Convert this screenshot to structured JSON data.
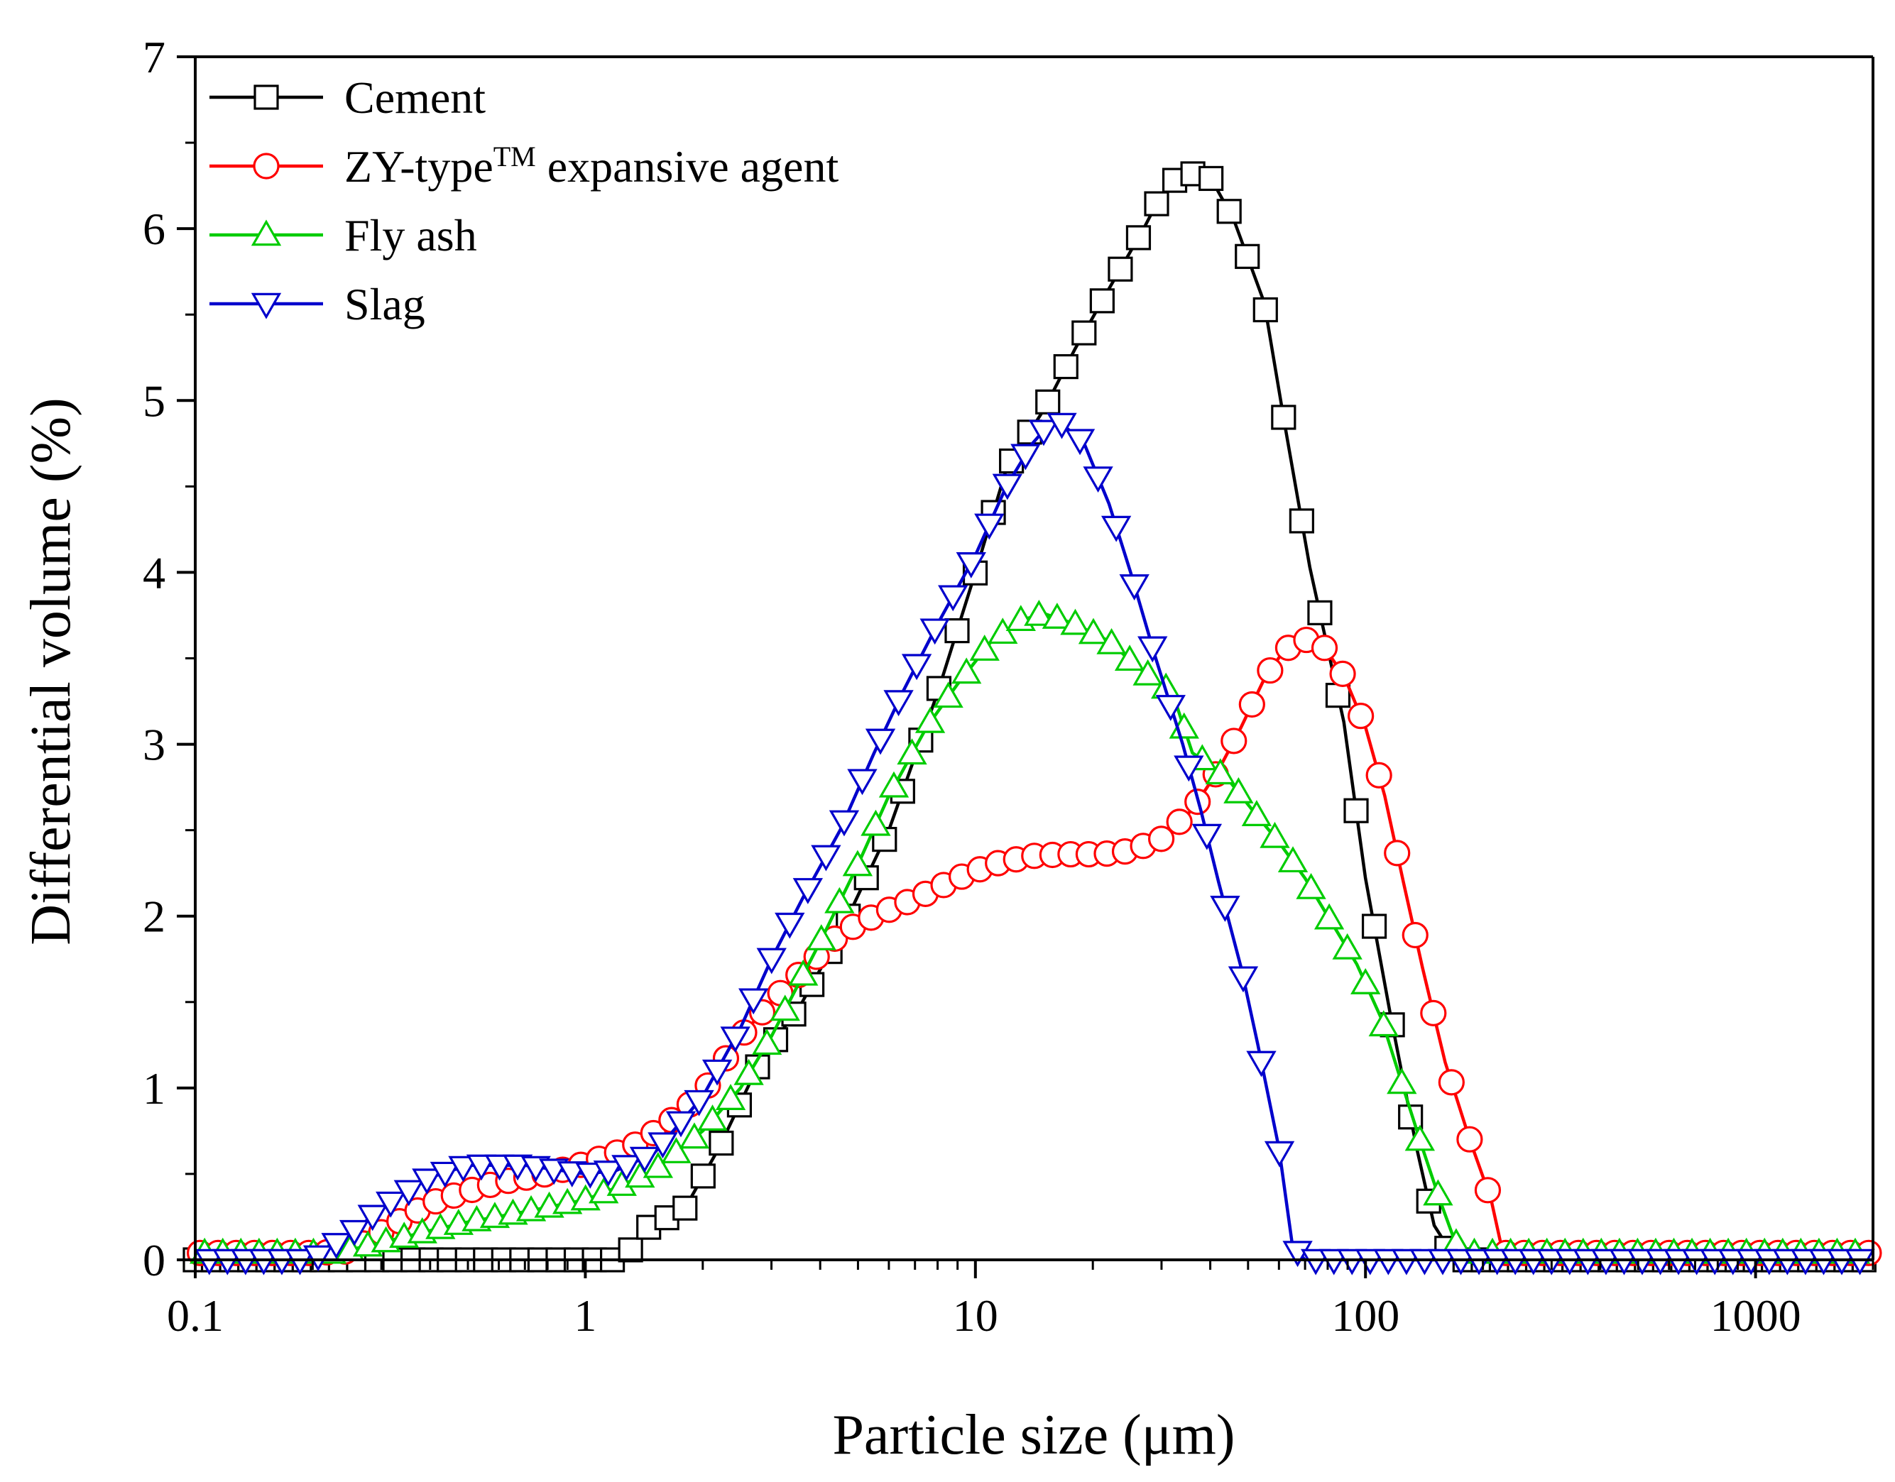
{
  "chart_data": {
    "type": "line",
    "title": "",
    "xlabel": "Particle size (μm)",
    "ylabel": "Differential volume (%)",
    "xscale": "log",
    "xlim": [
      0.1,
      2000
    ],
    "ylim": [
      0,
      7
    ],
    "xticks": [
      {
        "value": 0.1,
        "label": "0.1"
      },
      {
        "value": 1,
        "label": "1"
      },
      {
        "value": 10,
        "label": "10"
      },
      {
        "value": 100,
        "label": "100"
      },
      {
        "value": 1000,
        "label": "1000"
      }
    ],
    "yticks": [
      {
        "value": 0,
        "label": "0"
      },
      {
        "value": 1,
        "label": "1"
      },
      {
        "value": 2,
        "label": "2"
      },
      {
        "value": 3,
        "label": "3"
      },
      {
        "value": 4,
        "label": "4"
      },
      {
        "value": 5,
        "label": "5"
      },
      {
        "value": 6,
        "label": "6"
      },
      {
        "value": 7,
        "label": "7"
      }
    ],
    "legend_position": "top-left",
    "series": [
      {
        "name": "Cement",
        "label_main": "Cement",
        "label_sup": "",
        "color": "#000000",
        "marker": "square",
        "points": [
          [
            0.1,
            0
          ],
          [
            1.26,
            0
          ],
          [
            1.4,
            0.17
          ],
          [
            1.8,
            0.3
          ],
          [
            2.2,
            0.65
          ],
          [
            2.8,
            1.15
          ],
          [
            3.6,
            1.5
          ],
          [
            4.5,
            1.9
          ],
          [
            6,
            2.5
          ],
          [
            8,
            3.3
          ],
          [
            10,
            4.0
          ],
          [
            12,
            4.6
          ],
          [
            15,
            4.95
          ],
          [
            18,
            5.3
          ],
          [
            22,
            5.65
          ],
          [
            27,
            6.0
          ],
          [
            30,
            6.2
          ],
          [
            34,
            6.33
          ],
          [
            40,
            6.3
          ],
          [
            46,
            6.05
          ],
          [
            55,
            5.57
          ],
          [
            62,
            4.87
          ],
          [
            72,
            4.03
          ],
          [
            88,
            3.13
          ],
          [
            100,
            2.22
          ],
          [
            116,
            1.42
          ],
          [
            135,
            0.66
          ],
          [
            150,
            0.2
          ],
          [
            160,
            0.1
          ],
          [
            165,
            0
          ],
          [
            2000,
            0
          ]
        ]
      },
      {
        "name": "ZY-type expansive agent",
        "label_main": "ZY-type",
        "label_sup": "TM",
        "label_tail": " expansive agent",
        "color": "#ff0000",
        "marker": "circle",
        "points": [
          [
            0.1,
            0.04
          ],
          [
            0.2,
            0.04
          ],
          [
            0.25,
            0.05
          ],
          [
            0.32,
            0.2
          ],
          [
            0.4,
            0.33
          ],
          [
            0.5,
            0.4
          ],
          [
            0.6,
            0.45
          ],
          [
            0.8,
            0.5
          ],
          [
            1,
            0.56
          ],
          [
            1.3,
            0.65
          ],
          [
            1.6,
            0.78
          ],
          [
            2,
            0.97
          ],
          [
            2.5,
            1.3
          ],
          [
            3,
            1.5
          ],
          [
            3.6,
            1.68
          ],
          [
            4.5,
            1.9
          ],
          [
            5.5,
            2.0
          ],
          [
            7,
            2.1
          ],
          [
            9,
            2.22
          ],
          [
            11,
            2.3
          ],
          [
            14,
            2.35
          ],
          [
            17,
            2.36
          ],
          [
            21,
            2.36
          ],
          [
            25,
            2.38
          ],
          [
            30,
            2.45
          ],
          [
            36,
            2.62
          ],
          [
            42,
            2.85
          ],
          [
            48,
            3.1
          ],
          [
            55,
            3.38
          ],
          [
            62,
            3.55
          ],
          [
            70,
            3.61
          ],
          [
            78,
            3.57
          ],
          [
            88,
            3.4
          ],
          [
            100,
            3.1
          ],
          [
            112,
            2.7
          ],
          [
            125,
            2.2
          ],
          [
            140,
            1.7
          ],
          [
            160,
            1.15
          ],
          [
            185,
            0.7
          ],
          [
            210,
            0.35
          ],
          [
            225,
            0.04
          ],
          [
            2000,
            0.04
          ]
        ]
      },
      {
        "name": "Fly ash",
        "label_main": "Fly ash",
        "label_sup": "",
        "color": "#00cc00",
        "marker": "triangle-up",
        "points": [
          [
            0.1,
            0.04
          ],
          [
            0.23,
            0.04
          ],
          [
            0.3,
            0.1
          ],
          [
            0.4,
            0.17
          ],
          [
            0.5,
            0.22
          ],
          [
            0.7,
            0.28
          ],
          [
            1,
            0.35
          ],
          [
            1.2,
            0.42
          ],
          [
            1.5,
            0.52
          ],
          [
            2,
            0.75
          ],
          [
            2.5,
            1.0
          ],
          [
            3,
            1.3
          ],
          [
            4,
            1.85
          ],
          [
            5,
            2.3
          ],
          [
            6,
            2.7
          ],
          [
            7.5,
            3.1
          ],
          [
            9,
            3.35
          ],
          [
            11,
            3.6
          ],
          [
            13,
            3.72
          ],
          [
            15,
            3.76
          ],
          [
            18,
            3.7
          ],
          [
            22,
            3.6
          ],
          [
            26,
            3.45
          ],
          [
            32,
            3.3
          ],
          [
            36,
            2.95
          ],
          [
            40,
            2.88
          ],
          [
            45,
            2.78
          ],
          [
            52,
            2.6
          ],
          [
            60,
            2.43
          ],
          [
            70,
            2.22
          ],
          [
            80,
            2.0
          ],
          [
            95,
            1.72
          ],
          [
            110,
            1.4
          ],
          [
            125,
            1.0
          ],
          [
            140,
            0.65
          ],
          [
            155,
            0.35
          ],
          [
            170,
            0.1
          ],
          [
            180,
            0.04
          ],
          [
            2000,
            0.04
          ]
        ]
      },
      {
        "name": "Slag",
        "label_main": "Slag",
        "label_sup": "",
        "color": "#0000cc",
        "marker": "triangle-down",
        "points": [
          [
            0.1,
            0
          ],
          [
            0.2,
            0
          ],
          [
            0.25,
            0.15
          ],
          [
            0.3,
            0.3
          ],
          [
            0.4,
            0.48
          ],
          [
            0.5,
            0.55
          ],
          [
            0.7,
            0.55
          ],
          [
            1,
            0.5
          ],
          [
            1.2,
            0.52
          ],
          [
            1.5,
            0.62
          ],
          [
            2,
            0.95
          ],
          [
            2.5,
            1.35
          ],
          [
            3,
            1.75
          ],
          [
            3.6,
            2.1
          ],
          [
            4.5,
            2.5
          ],
          [
            5.5,
            2.95
          ],
          [
            6.5,
            3.3
          ],
          [
            8,
            3.7
          ],
          [
            10,
            4.1
          ],
          [
            12,
            4.5
          ],
          [
            14,
            4.75
          ],
          [
            16,
            4.9
          ],
          [
            19,
            4.75
          ],
          [
            22,
            4.4
          ],
          [
            25,
            4.0
          ],
          [
            29,
            3.5
          ],
          [
            34,
            3.0
          ],
          [
            38,
            2.6
          ],
          [
            42,
            2.2
          ],
          [
            48,
            1.7
          ],
          [
            53,
            1.25
          ],
          [
            60,
            0.65
          ],
          [
            65,
            0.08
          ],
          [
            70,
            0
          ],
          [
            2000,
            0
          ]
        ]
      }
    ]
  }
}
